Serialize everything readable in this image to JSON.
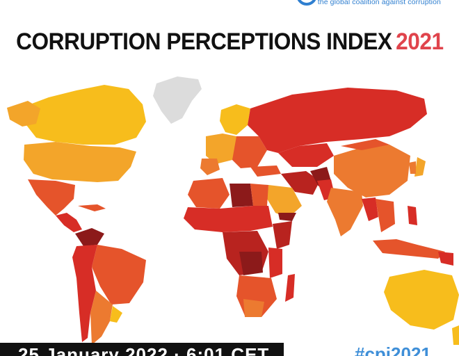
{
  "header": {
    "tagline": "the global coalition against corruption",
    "title": "CORRUPTION PERCEPTIONS INDEX",
    "year": "2021"
  },
  "footer": {
    "date_text": "25 January 2022 · 6:01 CET",
    "hashtag": "#cpi2021"
  },
  "map": {
    "type": "choropleth",
    "region": "world",
    "colors": {
      "clean": "#f7bd1c",
      "fairly_clean": "#f3a52a",
      "mid": "#ec7a30",
      "mid_high": "#e5542b",
      "high": "#d72d26",
      "very_high": "#b8231f",
      "extreme": "#8c1a1a",
      "no_data": "#dcdcdc"
    }
  }
}
